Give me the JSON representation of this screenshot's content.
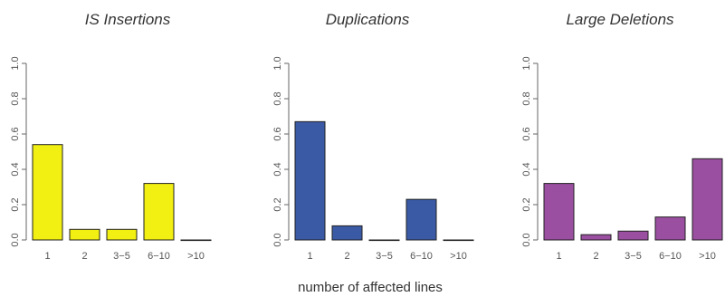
{
  "xlabel": "number of affected lines",
  "chart_data": [
    {
      "type": "bar",
      "title": "IS Insertions",
      "categories": [
        "1",
        "2",
        "3−5",
        "6−10",
        ">10"
      ],
      "values": [
        0.54,
        0.06,
        0.06,
        0.32,
        0.0
      ],
      "ylim": [
        0,
        1
      ],
      "yticks": [
        "0.0",
        "0.2",
        "0.4",
        "0.6",
        "0.8",
        "1.0"
      ],
      "color": "#f2ef12",
      "grid": false
    },
    {
      "type": "bar",
      "title": "Duplications",
      "categories": [
        "1",
        "2",
        "3−5",
        "6−10",
        ">10"
      ],
      "values": [
        0.67,
        0.08,
        0.0,
        0.23,
        0.0
      ],
      "ylim": [
        0,
        1
      ],
      "yticks": [
        "0.0",
        "0.2",
        "0.4",
        "0.6",
        "0.8",
        "1.0"
      ],
      "color": "#3a5aa5",
      "grid": false
    },
    {
      "type": "bar",
      "title": "Large Deletions",
      "categories": [
        "1",
        "2",
        "3−5",
        "6−10",
        ">10"
      ],
      "values": [
        0.32,
        0.03,
        0.05,
        0.13,
        0.46
      ],
      "ylim": [
        0,
        1
      ],
      "yticks": [
        "0.0",
        "0.2",
        "0.4",
        "0.6",
        "0.8",
        "1.0"
      ],
      "color": "#9b4fa0",
      "grid": false
    }
  ]
}
